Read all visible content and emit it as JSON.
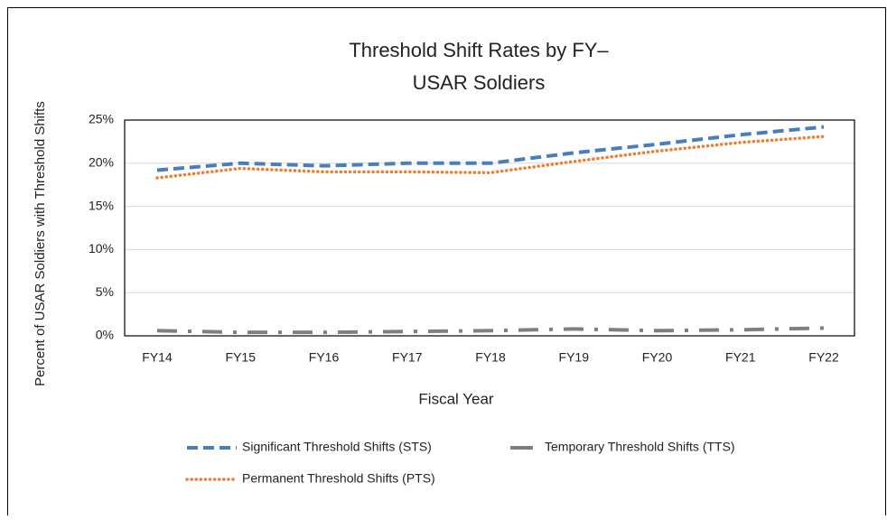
{
  "chart_data": {
    "type": "line",
    "title": [
      "Threshold Shift Rates by FY–",
      "USAR Soldiers"
    ],
    "x_label": "Fiscal Year",
    "y_label": "Percent of USAR Soldiers with Threshold Shifts",
    "categories": [
      "FY14",
      "FY15",
      "FY16",
      "FY17",
      "FY18",
      "FY19",
      "FY20",
      "FY21",
      "FY22"
    ],
    "series": [
      {
        "name": "Significant Threshold Shifts (STS)",
        "color": "#4a7ebb",
        "line_style": "dash",
        "values": [
          19.2,
          20,
          19.7,
          20,
          20,
          21.2,
          22.2,
          23.3,
          24.2
        ]
      },
      {
        "name": "Temporary Threshold Shifts (TTS)",
        "color": "#7f7f7f",
        "line_style": "dash-dot",
        "values": [
          0.6,
          0.4,
          0.4,
          0.5,
          0.6,
          0.8,
          0.6,
          0.7,
          0.9
        ]
      },
      {
        "name": "Permanent Threshold Shifts (PTS)",
        "color": "#ed7d31",
        "line_style": "dot",
        "values": [
          18.3,
          19.4,
          19,
          19,
          18.9,
          20.2,
          21.4,
          22.4,
          23.1
        ]
      }
    ],
    "ylim": [
      0,
      25
    ],
    "yticks": [
      {
        "value": 0,
        "label": "0%"
      },
      {
        "value": 5,
        "label": "5%"
      },
      {
        "value": 10,
        "label": "10%"
      },
      {
        "value": 15,
        "label": "15%"
      },
      {
        "value": 20,
        "label": "20%"
      },
      {
        "value": 25,
        "label": "25%"
      }
    ],
    "grid": true
  }
}
